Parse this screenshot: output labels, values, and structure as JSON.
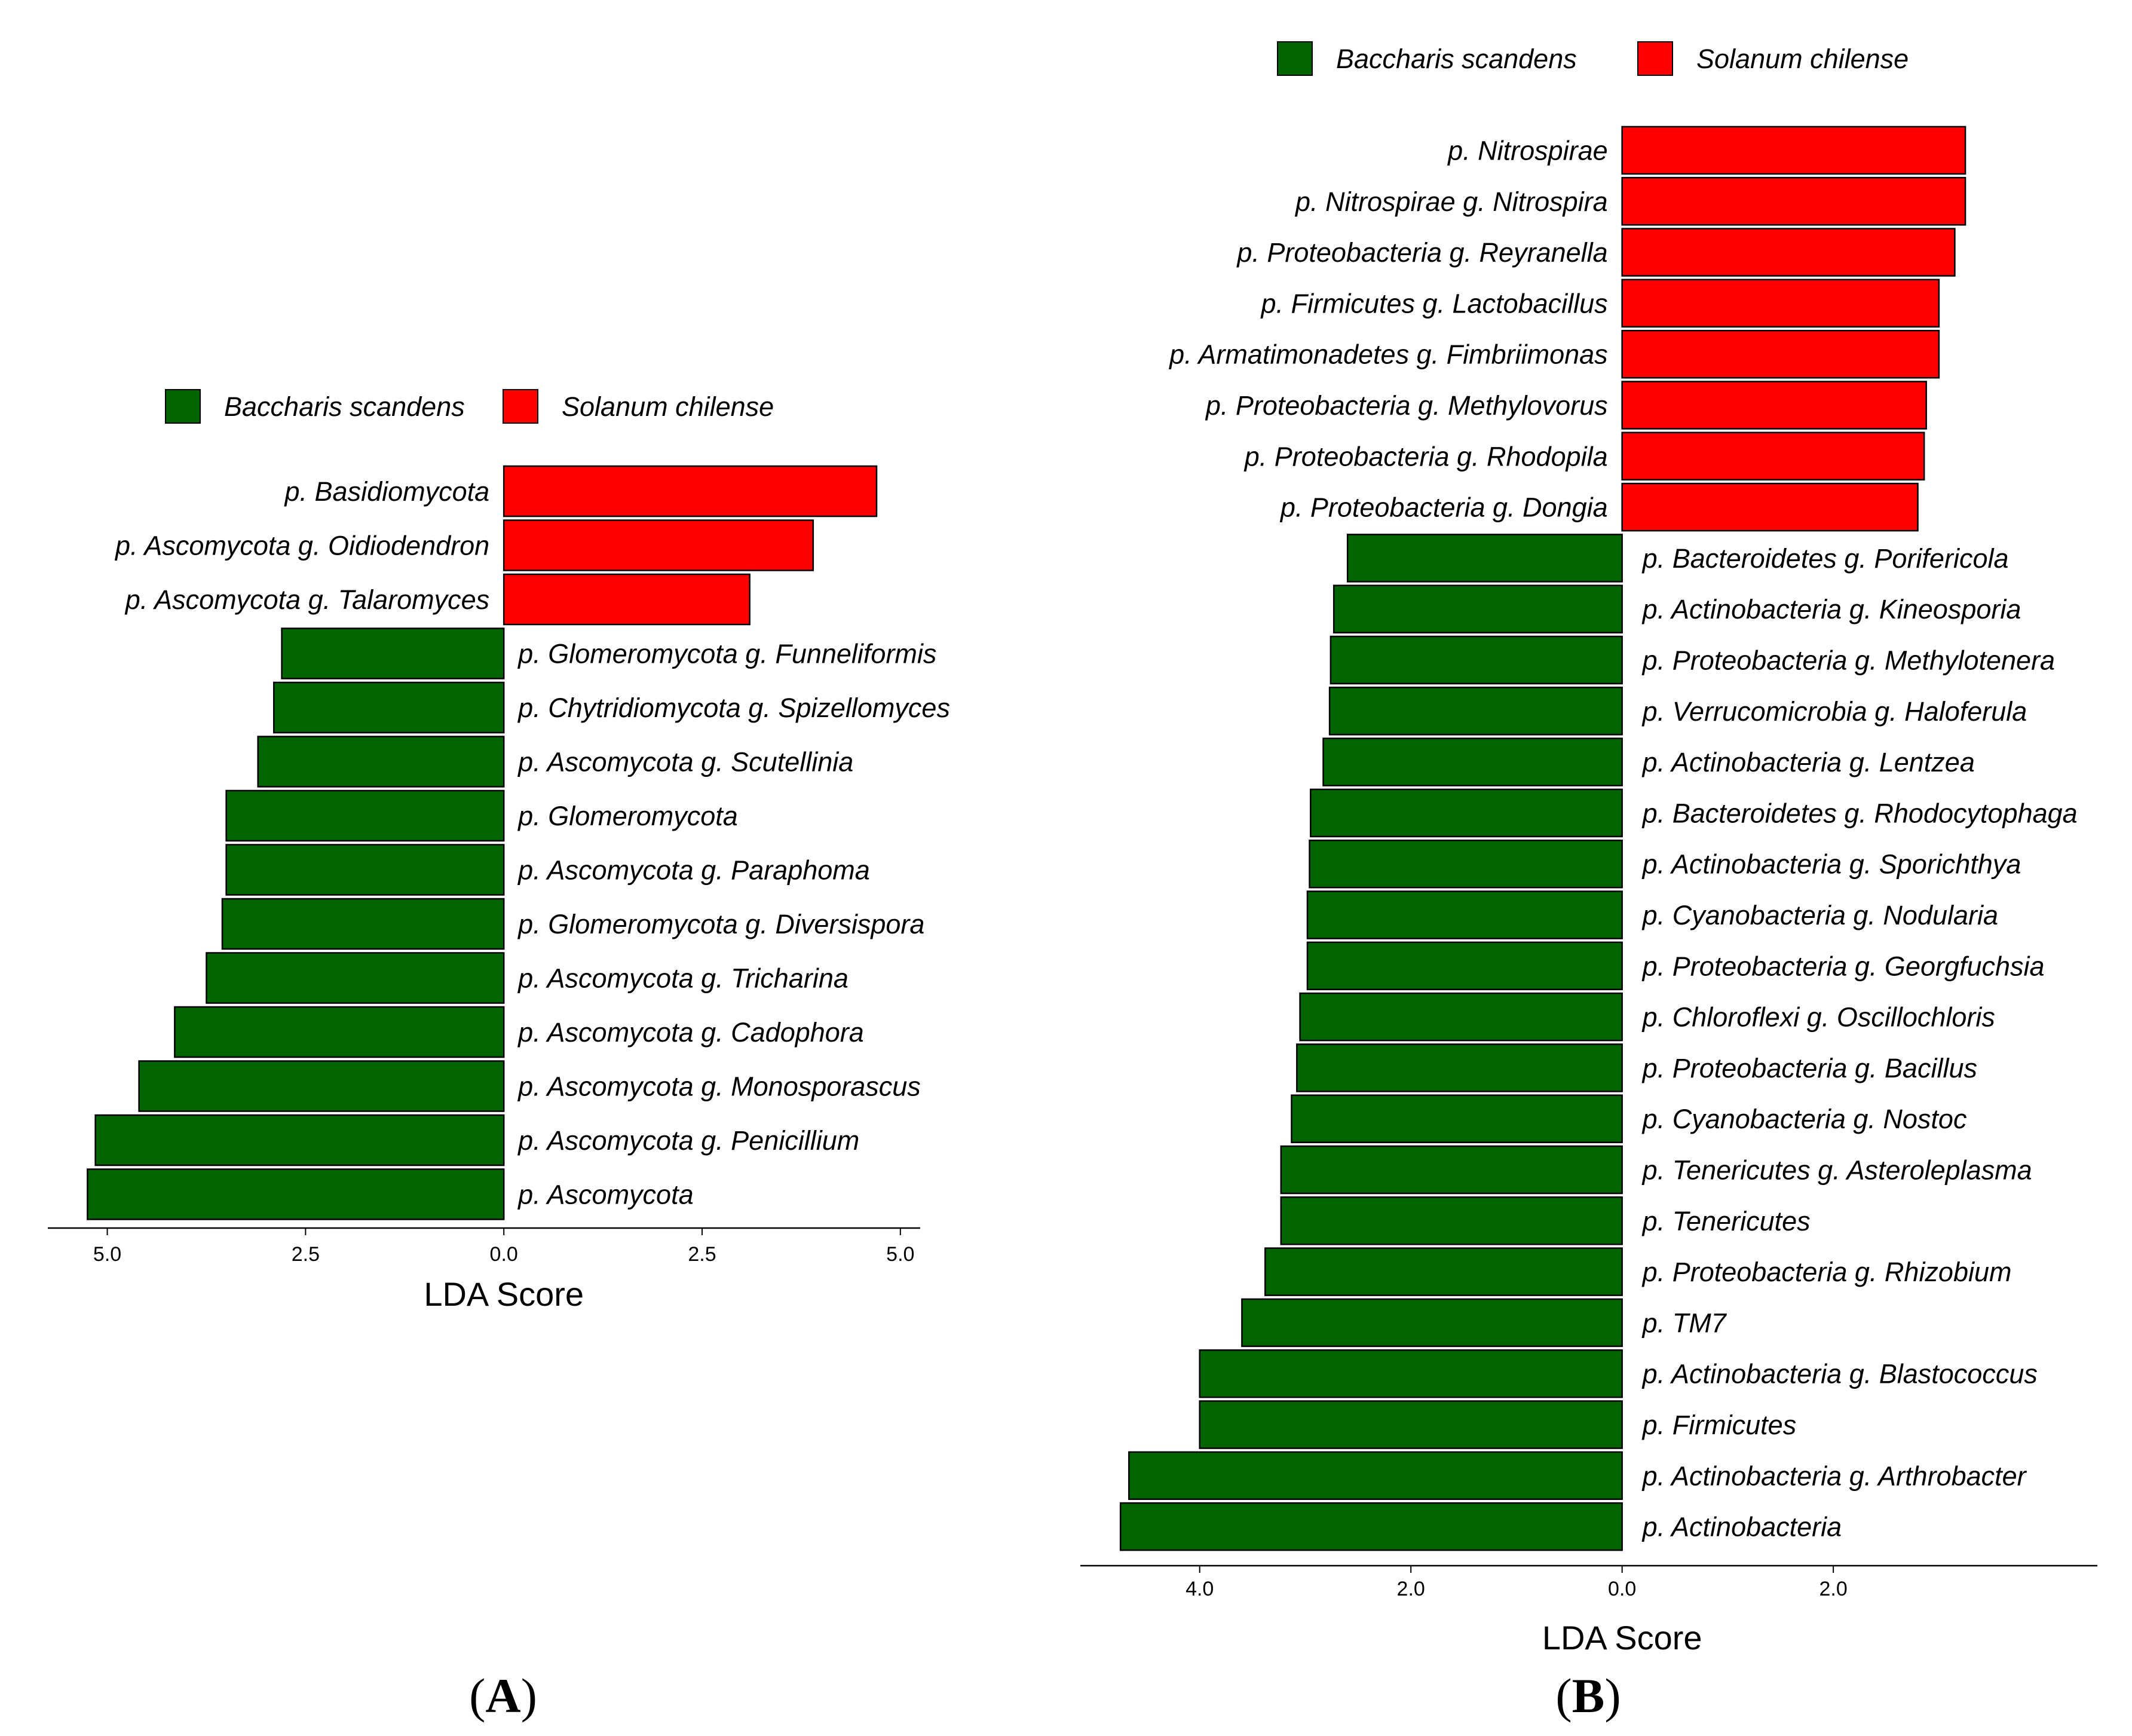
{
  "colors": {
    "Baccharis scandens": "#006400",
    "Solanum chilense": "#ff0000",
    "edge": "#000000"
  },
  "legend_order": [
    "Baccharis scandens",
    "Solanum chilense"
  ],
  "chart_data": [
    {
      "type": "bar",
      "orientation": "horizontal-diverging",
      "panel": "A",
      "xlabel": "LDA Score",
      "xlim": [
        -5.75,
        5.25
      ],
      "xticks": [
        -5.0,
        -2.5,
        0.0,
        2.5,
        5.0
      ],
      "tick_labels": [
        "5.0",
        "2.5",
        "0.0",
        "2.5",
        "5.0"
      ],
      "series": [
        {
          "name": "Baccharis scandens",
          "direction": "left"
        },
        {
          "name": "Solanum chilense",
          "direction": "right"
        }
      ],
      "categories": [
        "p. Basidiomycota",
        "p. Ascomycota g. Oidiodendron",
        "p. Ascomycota g. Talaromyces",
        "p. Glomeromycota g. Funneliformis",
        "p. Chytridiomycota g. Spizellomyces",
        "p. Ascomycota g. Scutellinia",
        "p. Glomeromycota",
        "p. Ascomycota g. Paraphoma",
        "p. Glomeromycota g. Diversispora",
        "p. Ascomycota g. Tricharina",
        "p. Ascomycota g. Cadophora",
        "p. Ascomycota g. Monosporascus",
        "p. Ascomycota g. Penicillium",
        "p. Ascomycota"
      ],
      "groups": [
        "Solanum chilense",
        "Solanum chilense",
        "Solanum chilense",
        "Baccharis scandens",
        "Baccharis scandens",
        "Baccharis scandens",
        "Baccharis scandens",
        "Baccharis scandens",
        "Baccharis scandens",
        "Baccharis scandens",
        "Baccharis scandens",
        "Baccharis scandens",
        "Baccharis scandens",
        "Baccharis scandens"
      ],
      "values": [
        4.7,
        3.9,
        3.1,
        2.8,
        2.9,
        3.1,
        3.5,
        3.5,
        3.55,
        3.75,
        4.15,
        4.6,
        5.15,
        5.25
      ]
    },
    {
      "type": "bar",
      "orientation": "horizontal-diverging",
      "panel": "B",
      "xlabel": "LDA Score",
      "xlim": [
        -5.13,
        4.5
      ],
      "xticks": [
        -4.0,
        -2.0,
        0.0,
        2.0
      ],
      "tick_labels": [
        "4.0",
        "2.0",
        "0.0",
        "2.0"
      ],
      "series": [
        {
          "name": "Baccharis scandens",
          "direction": "left"
        },
        {
          "name": "Solanum chilense",
          "direction": "right"
        }
      ],
      "categories": [
        "p. Nitrospirae",
        "p. Nitrospirae g. Nitrospira",
        "p. Proteobacteria g. Reyranella",
        "p. Firmicutes g. Lactobacillus",
        "p. Armatimonadetes g. Fimbriimonas",
        "p. Proteobacteria g. Methylovorus",
        "p. Proteobacteria g. Rhodopila",
        "p. Proteobacteria g. Dongia",
        "p. Bacteroidetes g. Porifericola",
        "p. Actinobacteria g. Kineosporia",
        "p. Proteobacteria g. Methylotenera",
        "p. Verrucomicrobia g. Haloferula",
        "p. Actinobacteria g. Lentzea",
        "p. Bacteroidetes g. Rhodocytophaga",
        "p. Actinobacteria g. Sporichthya",
        "p. Cyanobacteria g. Nodularia",
        "p. Proteobacteria g. Georgfuchsia",
        "p. Chloroflexi g. Oscillochloris",
        "p. Proteobacteria g. Bacillus",
        "p. Cyanobacteria g. Nostoc",
        "p. Tenericutes g. Asteroleplasma",
        "p. Tenericutes",
        "p. Proteobacteria g. Rhizobium",
        "p. TM7",
        "p. Actinobacteria g. Blastococcus",
        "p. Firmicutes",
        "p. Actinobacteria g. Arthrobacter",
        "p. Actinobacteria"
      ],
      "groups": [
        "Solanum chilense",
        "Solanum chilense",
        "Solanum chilense",
        "Solanum chilense",
        "Solanum chilense",
        "Solanum chilense",
        "Solanum chilense",
        "Solanum chilense",
        "Baccharis scandens",
        "Baccharis scandens",
        "Baccharis scandens",
        "Baccharis scandens",
        "Baccharis scandens",
        "Baccharis scandens",
        "Baccharis scandens",
        "Baccharis scandens",
        "Baccharis scandens",
        "Baccharis scandens",
        "Baccharis scandens",
        "Baccharis scandens",
        "Baccharis scandens",
        "Baccharis scandens",
        "Baccharis scandens",
        "Baccharis scandens",
        "Baccharis scandens",
        "Baccharis scandens",
        "Baccharis scandens",
        "Baccharis scandens"
      ],
      "values": [
        3.25,
        3.25,
        3.15,
        3.0,
        3.0,
        2.88,
        2.86,
        2.8,
        2.6,
        2.73,
        2.76,
        2.77,
        2.83,
        2.95,
        2.96,
        2.98,
        2.98,
        3.05,
        3.08,
        3.13,
        3.23,
        3.23,
        3.38,
        3.6,
        4.0,
        4.0,
        4.67,
        4.75
      ]
    }
  ],
  "panel_labels": {
    "A": "A",
    "B": "B"
  },
  "paren_open": "(",
  "paren_close": ")"
}
